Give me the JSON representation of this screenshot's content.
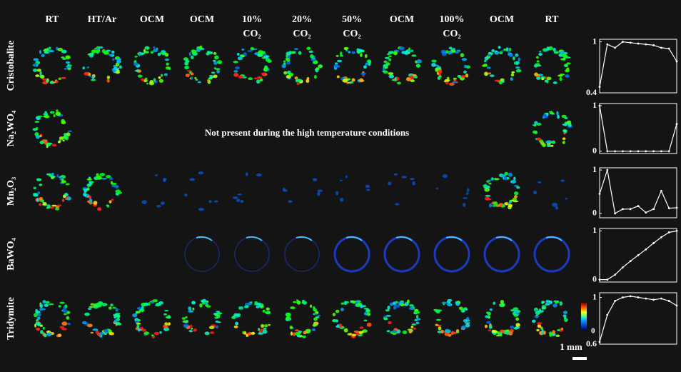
{
  "columns": [
    [
      "RT"
    ],
    [
      "HT/Ar"
    ],
    [
      "OCM"
    ],
    [
      "OCM"
    ],
    [
      "10%",
      "CO₂"
    ],
    [
      "20%",
      "CO₂"
    ],
    [
      "50%",
      "CO₂"
    ],
    [
      "OCM"
    ],
    [
      "100%",
      "CO₂"
    ],
    [
      "OCM"
    ],
    [
      "RT"
    ]
  ],
  "rows": [
    "Cristobalite",
    "Na₂WO₄",
    "Mn₂O₃",
    "BaWO₄",
    "Tridymite"
  ],
  "note": "Not present during the high temperature conditions",
  "colorbar_label": "0",
  "scale_bar": "1 mm",
  "chart_data": [
    {
      "type": "line",
      "categories": [
        null,
        null,
        null,
        null,
        null,
        null,
        null,
        null,
        null,
        null,
        null
      ],
      "values": [
        0.47,
        0.97,
        0.93,
        1.0,
        0.99,
        0.98,
        0.97,
        0.96,
        0.93,
        0.92,
        0.77
      ],
      "color": "#ffffff",
      "ylim": [
        0.4,
        1.03
      ],
      "yticks": [
        0.4,
        1
      ]
    },
    {
      "type": "line",
      "categories": [
        null,
        null,
        null,
        null,
        null,
        null,
        null,
        null,
        null,
        null,
        null
      ],
      "values": [
        1.0,
        0,
        0,
        0,
        0,
        0,
        0,
        0,
        0,
        0,
        0.6
      ],
      "color": "#ffffff",
      "ylim": [
        -0.05,
        1.05
      ],
      "yticks": [
        0,
        1
      ]
    },
    {
      "type": "line",
      "categories": [
        null,
        null,
        null,
        null,
        null,
        null,
        null,
        null,
        null,
        null,
        null
      ],
      "values": [
        0.45,
        1.0,
        0,
        0.1,
        0.1,
        0.17,
        0.02,
        0.1,
        0.52,
        0.12,
        0.13
      ],
      "color": "#ffffff",
      "ylim": [
        -0.1,
        1.05
      ],
      "yticks": [
        0,
        1
      ]
    },
    {
      "type": "line",
      "categories": [
        null,
        null,
        null,
        null,
        null,
        null,
        null,
        null,
        null,
        null,
        null
      ],
      "values": [
        0,
        0,
        0.1,
        0.25,
        0.38,
        0.5,
        0.62,
        0.75,
        0.87,
        0.97,
        1.0
      ],
      "color": "#ffffff",
      "ylim": [
        -0.05,
        1.05
      ],
      "yticks": [
        0,
        1
      ]
    },
    {
      "type": "line",
      "categories": [
        null,
        null,
        null,
        null,
        null,
        null,
        null,
        null,
        null,
        null,
        null
      ],
      "values": [
        0.62,
        0.85,
        0.97,
        1.0,
        1.01,
        1.0,
        0.99,
        0.98,
        0.99,
        0.97,
        0.93
      ],
      "color": "#ffffff",
      "ylim": [
        0.6,
        1.04
      ],
      "yticks": [
        0.6,
        1
      ]
    }
  ]
}
